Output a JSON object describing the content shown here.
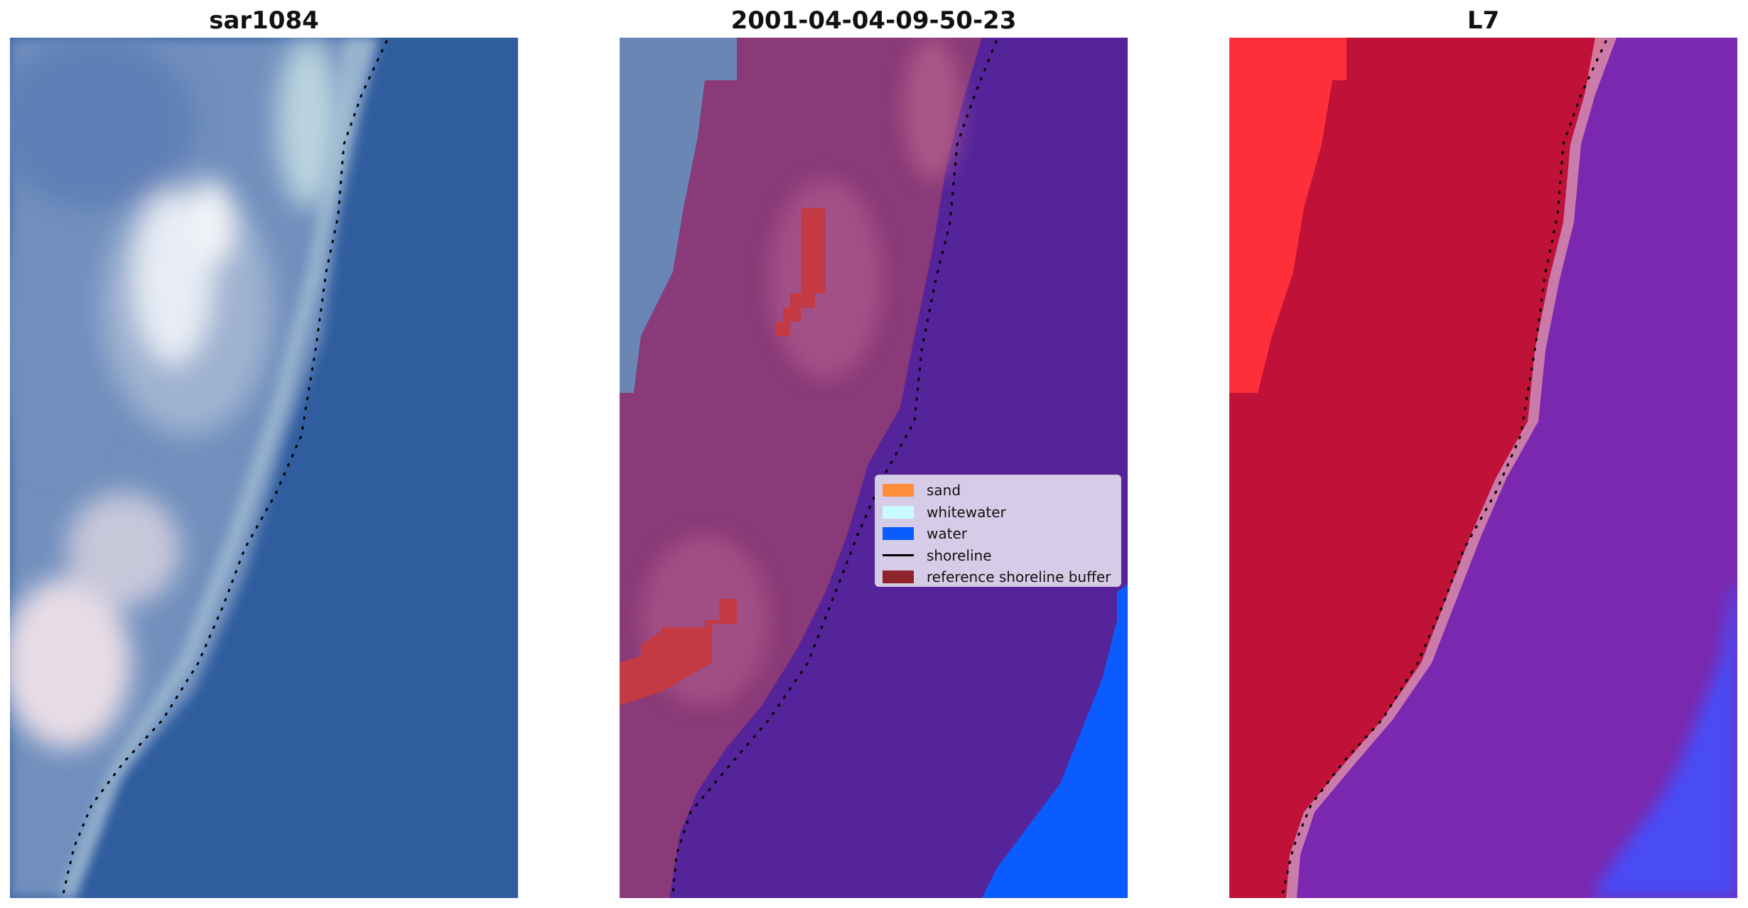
{
  "panels": [
    {
      "title": "sar1084"
    },
    {
      "title": "2001-04-04-09-50-23"
    },
    {
      "title": "L7"
    }
  ],
  "legend": {
    "items": [
      {
        "label": "sand",
        "color": "#ff8c3a",
        "kind": "patch"
      },
      {
        "label": "whitewater",
        "color": "#c8fbff",
        "kind": "patch"
      },
      {
        "label": "water",
        "color": "#0a5cff",
        "kind": "patch"
      },
      {
        "label": "shoreline",
        "color": "#000000",
        "kind": "line"
      },
      {
        "label": "reference shoreline buffer",
        "color": "#8e232b",
        "kind": "patch"
      }
    ]
  },
  "colors": {
    "rgb_water": "#2e5c9c",
    "classified_land": "#8a3a78",
    "classified_water": "#55249a",
    "water_class": "#0a5cff",
    "buffer_class": "#c43a44",
    "false_color_land": "#c01238",
    "false_color_land_bright": "#ff2f3a",
    "false_color_water": "#7a28b0",
    "false_color_deep": "#4a4cf5"
  }
}
